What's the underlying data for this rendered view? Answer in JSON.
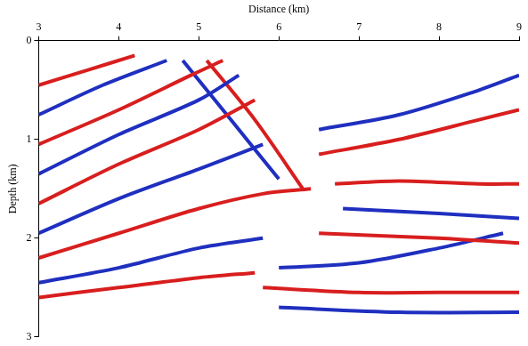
{
  "chart_data": {
    "type": "line",
    "x_label": "Distance (km)",
    "y_label": "Depth (km)",
    "xlim": [
      3,
      9
    ],
    "xticks": [
      3,
      4,
      5,
      6,
      7,
      8,
      9
    ],
    "ylim": [
      3,
      0
    ],
    "yticks": [
      0,
      1,
      2,
      3
    ],
    "grid": false,
    "legend": false,
    "series": [
      {
        "color": "#d81e1e",
        "x": [
          3,
          3.6,
          4.2
        ],
        "values": [
          0.45,
          0.3,
          0.15
        ]
      },
      {
        "color": "#1f2fbf",
        "x": [
          3,
          3.8,
          4.6
        ],
        "values": [
          0.75,
          0.45,
          0.2
        ]
      },
      {
        "color": "#d81e1e",
        "x": [
          3,
          4,
          4.9,
          5.3
        ],
        "values": [
          1.05,
          0.7,
          0.35,
          0.2
        ]
      },
      {
        "color": "#1f2fbf",
        "x": [
          3,
          4,
          5,
          5.5
        ],
        "values": [
          1.35,
          0.95,
          0.6,
          0.35
        ]
      },
      {
        "color": "#d81e1e",
        "x": [
          3,
          4,
          5,
          5.7
        ],
        "values": [
          1.65,
          1.25,
          0.9,
          0.6
        ]
      },
      {
        "color": "#1f2fbf",
        "x": [
          3,
          4,
          5,
          5.8
        ],
        "values": [
          1.95,
          1.6,
          1.3,
          1.05
        ]
      },
      {
        "color": "#d81e1e",
        "x": [
          3,
          4,
          5,
          5.8,
          6.4
        ],
        "values": [
          2.2,
          1.95,
          1.7,
          1.55,
          1.5
        ]
      },
      {
        "color": "#1f2fbf",
        "x": [
          3,
          4,
          5,
          5.8
        ],
        "values": [
          2.45,
          2.3,
          2.1,
          2.0
        ]
      },
      {
        "color": "#d81e1e",
        "x": [
          3,
          4,
          5,
          5.7
        ],
        "values": [
          2.6,
          2.5,
          2.4,
          2.35
        ]
      },
      {
        "color": "#1f2fbf",
        "x": [
          4.8,
          5.4,
          6
        ],
        "values": [
          0.2,
          0.8,
          1.4
        ]
      },
      {
        "color": "#d81e1e",
        "x": [
          5.1,
          5.7,
          6.3
        ],
        "values": [
          0.2,
          0.8,
          1.5
        ]
      },
      {
        "color": "#1f2fbf",
        "x": [
          6.5,
          7.5,
          8.5,
          9
        ],
        "values": [
          0.9,
          0.75,
          0.5,
          0.35
        ]
      },
      {
        "color": "#d81e1e",
        "x": [
          6.5,
          7.5,
          8.5,
          9
        ],
        "values": [
          1.15,
          1.0,
          0.8,
          0.7
        ]
      },
      {
        "color": "#d81e1e",
        "x": [
          6.7,
          7.5,
          8.5,
          9
        ],
        "values": [
          1.45,
          1.42,
          1.45,
          1.45
        ]
      },
      {
        "color": "#1f2fbf",
        "x": [
          6.8,
          8,
          9
        ],
        "values": [
          1.7,
          1.75,
          1.8
        ]
      },
      {
        "color": "#d81e1e",
        "x": [
          6.5,
          8,
          9
        ],
        "values": [
          1.95,
          2.0,
          2.05
        ]
      },
      {
        "color": "#1f2fbf",
        "x": [
          6,
          7,
          8,
          8.8
        ],
        "values": [
          2.3,
          2.25,
          2.1,
          1.95
        ]
      },
      {
        "color": "#d81e1e",
        "x": [
          5.8,
          7,
          8,
          9
        ],
        "values": [
          2.5,
          2.55,
          2.55,
          2.55
        ]
      },
      {
        "color": "#1f2fbf",
        "x": [
          6,
          7.5,
          9
        ],
        "values": [
          2.7,
          2.75,
          2.75
        ]
      }
    ]
  }
}
